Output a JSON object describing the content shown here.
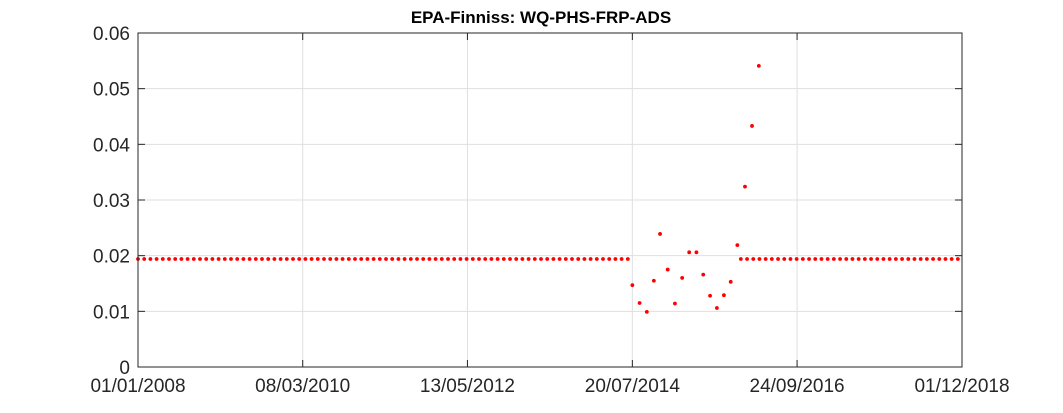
{
  "chart_data": {
    "type": "scatter",
    "title": "EPA-Finniss: WQ-PHS-FRP-ADS",
    "xlabel": "",
    "ylabel": "",
    "x_axis": {
      "type": "date",
      "min": "2008-01-01",
      "max": "2018-12-01",
      "ticks": [
        {
          "date": "2008-01-01",
          "label": "01/01/2008"
        },
        {
          "date": "2010-03-08",
          "label": "08/03/2010"
        },
        {
          "date": "2012-05-13",
          "label": "13/05/2012"
        },
        {
          "date": "2014-07-20",
          "label": "20/07/2014"
        },
        {
          "date": "2016-09-24",
          "label": "24/09/2016"
        },
        {
          "date": "2018-12-01",
          "label": "01/12/2018"
        }
      ]
    },
    "y_axis": {
      "min": 0,
      "max": 0.06,
      "ticks": [
        {
          "value": 0,
          "label": "0"
        },
        {
          "value": 0.01,
          "label": "0.01"
        },
        {
          "value": 0.02,
          "label": "0.02"
        },
        {
          "value": 0.03,
          "label": "0.03"
        },
        {
          "value": 0.04,
          "label": "0.04"
        },
        {
          "value": 0.05,
          "label": "0.05"
        },
        {
          "value": 0.06,
          "label": "0.06"
        }
      ]
    },
    "grid": true,
    "series": [
      {
        "marker_color": "#ff0000",
        "constant_segments": [
          {
            "start": "2008-01-01",
            "end": "2014-07-15",
            "step_days": 30,
            "value": 0.0194
          },
          {
            "start": "2015-12-27",
            "end": "2018-12-01",
            "step_days": 30,
            "value": 0.0194
          }
        ],
        "points": [
          {
            "x": "2014-07-20",
            "y": 0.0147
          },
          {
            "x": "2014-08-24",
            "y": 0.0115
          },
          {
            "x": "2014-09-28",
            "y": 0.0099
          },
          {
            "x": "2014-11-01",
            "y": 0.0155
          },
          {
            "x": "2014-12-01",
            "y": 0.0239
          },
          {
            "x": "2015-01-07",
            "y": 0.0175
          },
          {
            "x": "2015-02-11",
            "y": 0.0114
          },
          {
            "x": "2015-03-18",
            "y": 0.016
          },
          {
            "x": "2015-04-21",
            "y": 0.0206
          },
          {
            "x": "2015-05-26",
            "y": 0.0206
          },
          {
            "x": "2015-06-28",
            "y": 0.0166
          },
          {
            "x": "2015-07-31",
            "y": 0.0128
          },
          {
            "x": "2015-09-02",
            "y": 0.0106
          },
          {
            "x": "2015-10-06",
            "y": 0.0129
          },
          {
            "x": "2015-11-08",
            "y": 0.0153
          },
          {
            "x": "2015-12-10",
            "y": 0.0219
          },
          {
            "x": "2016-01-16",
            "y": 0.0324
          },
          {
            "x": "2016-02-19",
            "y": 0.0433
          },
          {
            "x": "2016-03-23",
            "y": 0.0541
          }
        ]
      }
    ]
  }
}
